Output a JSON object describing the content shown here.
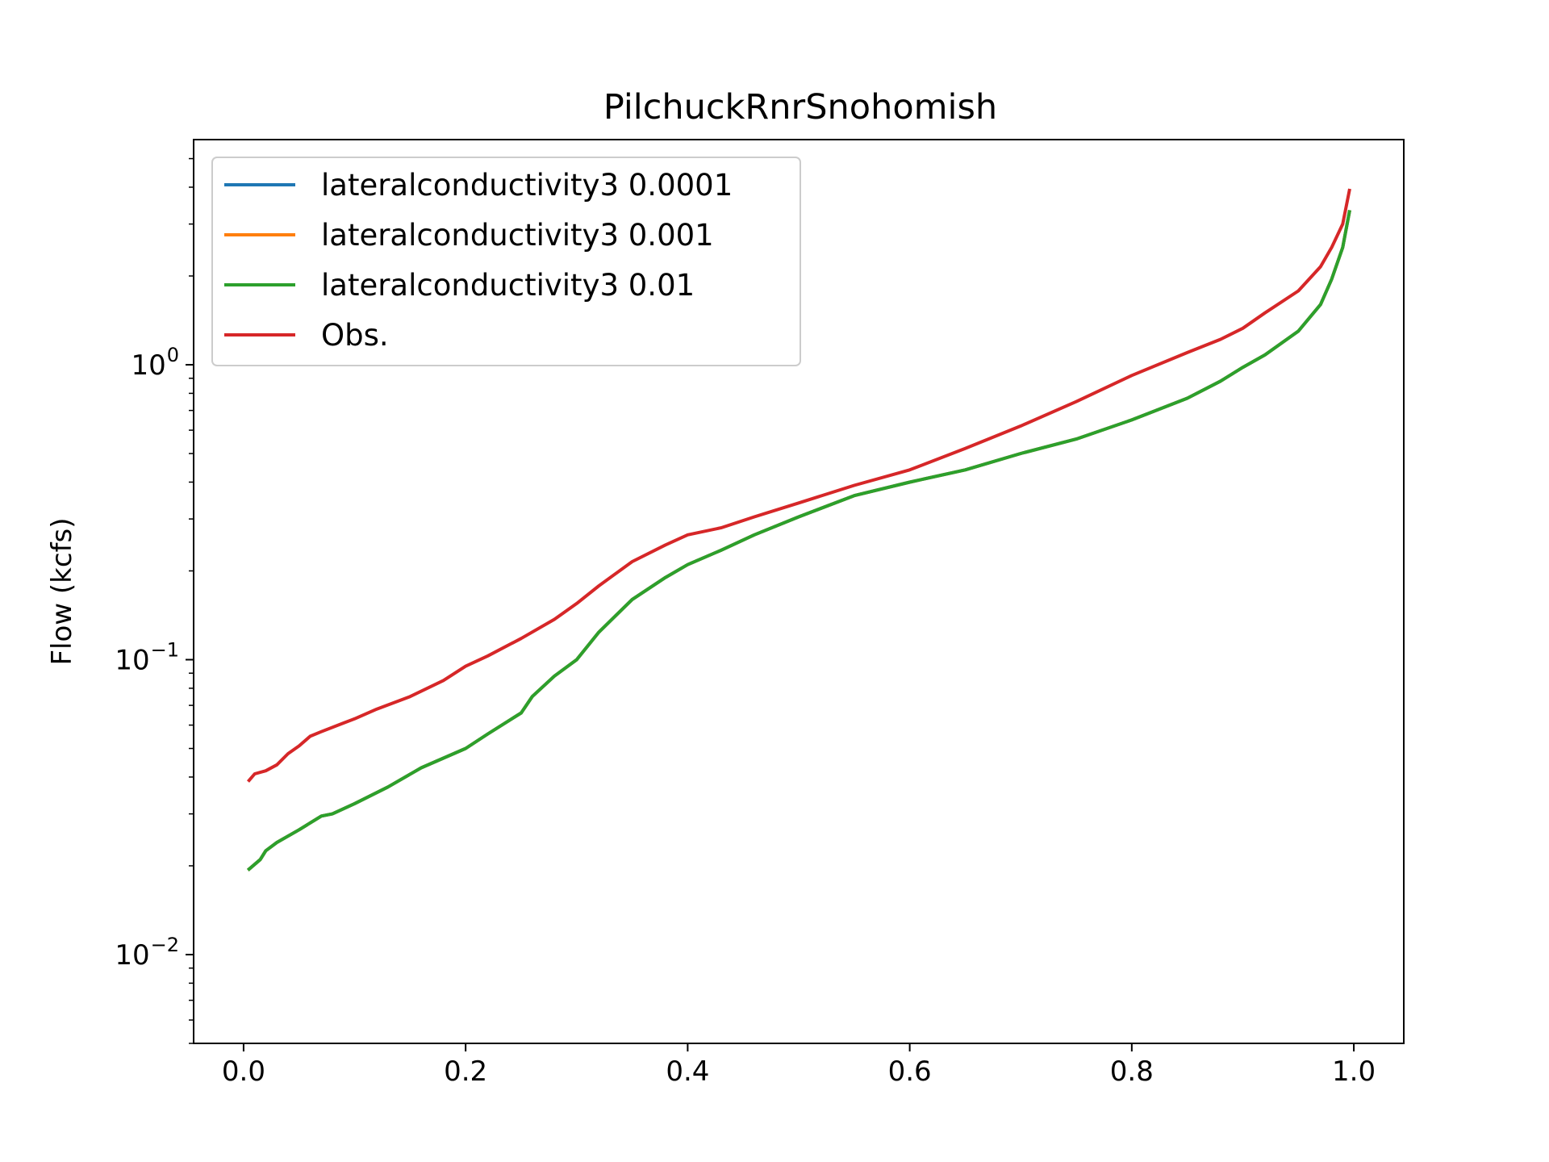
{
  "chart_data": {
    "type": "line",
    "title": "PilchuckRnrSnohomish",
    "xlabel": "",
    "ylabel": "Flow (kcfs)",
    "xscale": "linear",
    "yscale": "log",
    "xlim": [
      -0.045,
      1.045
    ],
    "ylim": [
      0.005,
      5.8
    ],
    "xticks": [
      0.0,
      0.2,
      0.4,
      0.6,
      0.8,
      1.0
    ],
    "xtick_labels": [
      "0.0",
      "0.2",
      "0.4",
      "0.6",
      "0.8",
      "1.0"
    ],
    "yticks": [
      {
        "value": 0.01,
        "base": "10",
        "exp": "−2"
      },
      {
        "value": 0.1,
        "base": "10",
        "exp": "−1"
      },
      {
        "value": 1,
        "base": "10",
        "exp": "0"
      }
    ],
    "grid": false,
    "legend_position": "upper-left",
    "series": [
      {
        "name": "lateralconductivity3 0.0001",
        "color": "#1f77b4",
        "x": [
          0.005,
          0.015,
          0.02,
          0.03,
          0.05,
          0.07,
          0.08,
          0.1,
          0.13,
          0.16,
          0.2,
          0.22,
          0.25,
          0.26,
          0.28,
          0.3,
          0.32,
          0.35,
          0.38,
          0.4,
          0.43,
          0.46,
          0.5,
          0.55,
          0.6,
          0.65,
          0.7,
          0.75,
          0.8,
          0.85,
          0.88,
          0.9,
          0.92,
          0.95,
          0.97,
          0.98,
          0.99,
          0.996
        ],
        "y": [
          0.0195,
          0.021,
          0.0225,
          0.024,
          0.0265,
          0.0295,
          0.03,
          0.0325,
          0.037,
          0.043,
          0.05,
          0.056,
          0.066,
          0.075,
          0.088,
          0.1,
          0.124,
          0.16,
          0.19,
          0.21,
          0.235,
          0.265,
          0.305,
          0.36,
          0.4,
          0.44,
          0.5,
          0.56,
          0.65,
          0.77,
          0.88,
          0.98,
          1.08,
          1.3,
          1.6,
          1.95,
          2.5,
          3.3
        ]
      },
      {
        "name": "lateralconductivity3 0.001",
        "color": "#ff7f0e",
        "x": [
          0.005,
          0.015,
          0.02,
          0.03,
          0.05,
          0.07,
          0.08,
          0.1,
          0.13,
          0.16,
          0.2,
          0.22,
          0.25,
          0.26,
          0.28,
          0.3,
          0.32,
          0.35,
          0.38,
          0.4,
          0.43,
          0.46,
          0.5,
          0.55,
          0.6,
          0.65,
          0.7,
          0.75,
          0.8,
          0.85,
          0.88,
          0.9,
          0.92,
          0.95,
          0.97,
          0.98,
          0.99,
          0.996
        ],
        "y": [
          0.0195,
          0.021,
          0.0225,
          0.024,
          0.0265,
          0.0295,
          0.03,
          0.0325,
          0.037,
          0.043,
          0.05,
          0.056,
          0.066,
          0.075,
          0.088,
          0.1,
          0.124,
          0.16,
          0.19,
          0.21,
          0.235,
          0.265,
          0.305,
          0.36,
          0.4,
          0.44,
          0.5,
          0.56,
          0.65,
          0.77,
          0.88,
          0.98,
          1.08,
          1.3,
          1.6,
          1.95,
          2.5,
          3.3
        ]
      },
      {
        "name": "lateralconductivity3 0.01",
        "color": "#2ca02c",
        "x": [
          0.005,
          0.015,
          0.02,
          0.03,
          0.05,
          0.07,
          0.08,
          0.1,
          0.13,
          0.16,
          0.2,
          0.22,
          0.25,
          0.26,
          0.28,
          0.3,
          0.32,
          0.35,
          0.38,
          0.4,
          0.43,
          0.46,
          0.5,
          0.55,
          0.6,
          0.65,
          0.7,
          0.75,
          0.8,
          0.85,
          0.88,
          0.9,
          0.92,
          0.95,
          0.97,
          0.98,
          0.99,
          0.996
        ],
        "y": [
          0.0195,
          0.021,
          0.0225,
          0.024,
          0.0265,
          0.0295,
          0.03,
          0.0325,
          0.037,
          0.043,
          0.05,
          0.056,
          0.066,
          0.075,
          0.088,
          0.1,
          0.124,
          0.16,
          0.19,
          0.21,
          0.235,
          0.265,
          0.305,
          0.36,
          0.4,
          0.44,
          0.5,
          0.56,
          0.65,
          0.77,
          0.88,
          0.98,
          1.08,
          1.3,
          1.6,
          1.95,
          2.5,
          3.3
        ]
      },
      {
        "name": "Obs.",
        "color": "#d62728",
        "x": [
          0.005,
          0.01,
          0.02,
          0.03,
          0.04,
          0.05,
          0.06,
          0.07,
          0.09,
          0.1,
          0.12,
          0.15,
          0.18,
          0.2,
          0.22,
          0.25,
          0.28,
          0.3,
          0.32,
          0.35,
          0.38,
          0.4,
          0.43,
          0.46,
          0.5,
          0.55,
          0.6,
          0.65,
          0.7,
          0.75,
          0.8,
          0.85,
          0.88,
          0.9,
          0.92,
          0.95,
          0.97,
          0.98,
          0.99,
          0.996
        ],
        "y": [
          0.039,
          0.041,
          0.042,
          0.044,
          0.048,
          0.051,
          0.055,
          0.057,
          0.061,
          0.063,
          0.068,
          0.075,
          0.085,
          0.095,
          0.103,
          0.118,
          0.137,
          0.155,
          0.178,
          0.215,
          0.245,
          0.265,
          0.28,
          0.305,
          0.34,
          0.39,
          0.44,
          0.52,
          0.62,
          0.75,
          0.92,
          1.1,
          1.22,
          1.33,
          1.5,
          1.78,
          2.15,
          2.5,
          3.0,
          3.9
        ]
      }
    ]
  }
}
